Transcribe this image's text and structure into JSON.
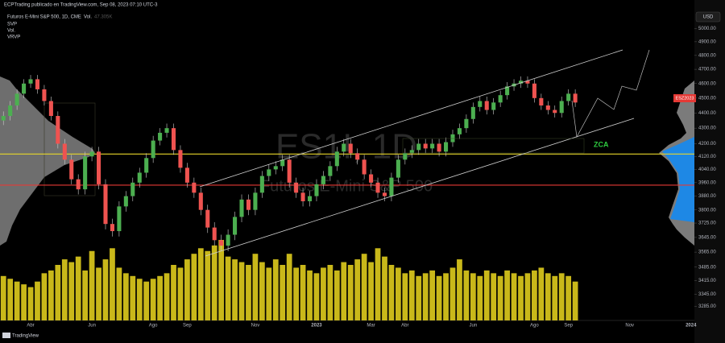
{
  "chart_data": {
    "type": "candlestick",
    "header": "ECPTrading publicado en TradingView.com, Sep 08, 2023 07:10 UTC-3",
    "symbol": "Futuros E-Mini S&P 500, 1D, CME",
    "volume_label": "Vol.",
    "volume_value": "47.305K",
    "indicators": [
      "SVP",
      "Vol.",
      "VRVP"
    ],
    "watermark": "ES1!, 1D",
    "watermark_name": "Futuros E-Mini S&P 500",
    "annotation": "ZCA",
    "price_tag": "ESZ2023",
    "currency": "USD",
    "brand": "TradingView",
    "log_scale": true,
    "ylim": [
      3215,
      5125
    ],
    "yticks": [
      {
        "value": 5000,
        "label": "5000.00"
      },
      {
        "value": 4900,
        "label": "4900.00"
      },
      {
        "value": 4800,
        "label": "4800.00"
      },
      {
        "value": 4700,
        "label": "4700.00"
      },
      {
        "value": 4600,
        "label": "4600.00"
      },
      {
        "value": 4500,
        "label": "4500.00"
      },
      {
        "value": 4400,
        "label": "4400.00"
      },
      {
        "value": 4300,
        "label": "4300.00"
      },
      {
        "value": 4200,
        "label": "4200.00"
      },
      {
        "value": 4120,
        "label": "4120.00"
      },
      {
        "value": 4040,
        "label": "4040.00"
      },
      {
        "value": 3960,
        "label": "3960.00"
      },
      {
        "value": 3880,
        "label": "3880.00"
      },
      {
        "value": 3800,
        "label": "3800.00"
      },
      {
        "value": 3725,
        "label": "3725.00"
      },
      {
        "value": 3645,
        "label": "3645.00"
      },
      {
        "value": 3565,
        "label": "3565.00"
      },
      {
        "value": 3485,
        "label": "3485.00"
      },
      {
        "value": 3415,
        "label": "3415.00"
      },
      {
        "value": 3345,
        "label": "3345.00"
      },
      {
        "value": 3285,
        "label": "3285.00"
      }
    ],
    "categories": [
      null,
      null,
      null,
      null,
      "Abr",
      null,
      null,
      null,
      null,
      null,
      null,
      null,
      null,
      "Jun",
      null,
      null,
      null,
      null,
      null,
      null,
      null,
      null,
      "Ago",
      null,
      null,
      null,
      null,
      "Sep",
      null,
      null,
      null,
      null,
      null,
      null,
      null,
      null,
      null,
      "Nov",
      null,
      null,
      null,
      null,
      null,
      null,
      null,
      null,
      "2023",
      null,
      null,
      null,
      null,
      null,
      null,
      null,
      "Mar",
      null,
      null,
      null,
      null,
      "Abr",
      null,
      null,
      null,
      null,
      null,
      null,
      null,
      null,
      null,
      "Jun",
      null,
      null,
      null,
      null,
      null,
      null,
      null,
      null,
      "Ago",
      null,
      null,
      null,
      null,
      "Sep",
      null,
      null,
      null,
      null,
      null,
      null,
      null,
      null,
      "Nov",
      null,
      null,
      null,
      null,
      null,
      null,
      null,
      null,
      "2024"
    ],
    "open": [
      4350,
      4380,
      4450,
      4530,
      4600,
      4630,
      4560,
      4480,
      4380,
      4200,
      4100,
      3980,
      3920,
      4120,
      4150,
      3950,
      3720,
      3680,
      3820,
      3880,
      3960,
      4020,
      4110,
      4220,
      4270,
      4300,
      4160,
      4050,
      3960,
      3900,
      3800,
      3700,
      3630,
      3600,
      3660,
      3760,
      3860,
      3800,
      3900,
      4000,
      4040,
      4060,
      4100,
      3960,
      3900,
      3850,
      3880,
      3950,
      4000,
      4060,
      4150,
      4200,
      4140,
      4100,
      4010,
      3960,
      3900,
      3880,
      3990,
      4100,
      4140,
      4160,
      4200,
      4170,
      4200,
      4150,
      4210,
      4260,
      4300,
      4360,
      4440,
      4480,
      4420,
      4470,
      4520,
      4580,
      4600,
      4620,
      4600,
      4500,
      4450,
      4420,
      4400,
      4480,
      4530,
      null,
      null,
      null,
      null,
      null,
      null,
      null,
      null,
      null,
      null,
      null,
      null,
      null,
      null,
      null,
      null,
      null
    ],
    "high": [
      4410,
      4480,
      4560,
      4630,
      4660,
      4660,
      4590,
      4510,
      4410,
      4230,
      4130,
      4010,
      4150,
      4180,
      4180,
      3980,
      3750,
      3850,
      3910,
      3990,
      4050,
      4140,
      4250,
      4300,
      4330,
      4330,
      4190,
      4080,
      3990,
      3930,
      3830,
      3730,
      3660,
      3690,
      3790,
      3890,
      3890,
      3930,
      4030,
      4070,
      4090,
      4130,
      4130,
      3990,
      3930,
      3910,
      3980,
      4030,
      4090,
      4180,
      4230,
      4230,
      4170,
      4130,
      4040,
      3990,
      3930,
      4020,
      4130,
      4170,
      4190,
      4230,
      4230,
      4230,
      4230,
      4240,
      4290,
      4330,
      4390,
      4470,
      4510,
      4510,
      4500,
      4550,
      4610,
      4630,
      4650,
      4650,
      4630,
      4530,
      4480,
      4450,
      4510,
      4560,
      4560,
      null,
      null,
      null,
      null,
      null,
      null,
      null,
      null,
      null,
      null,
      null,
      null,
      null,
      null,
      null,
      null,
      null
    ],
    "low": [
      4320,
      4350,
      4420,
      4500,
      4570,
      4530,
      4450,
      4350,
      4170,
      4070,
      3950,
      3890,
      3890,
      4090,
      3920,
      3690,
      3650,
      3650,
      3790,
      3850,
      3930,
      3990,
      4080,
      4190,
      4240,
      4130,
      4020,
      3930,
      3870,
      3770,
      3670,
      3600,
      3570,
      3570,
      3630,
      3730,
      3770,
      3770,
      3870,
      3970,
      4010,
      4030,
      3930,
      3870,
      3820,
      3820,
      3850,
      3920,
      3970,
      4030,
      4120,
      4110,
      4070,
      3980,
      3930,
      3870,
      3850,
      3850,
      3960,
      4070,
      4110,
      4130,
      4140,
      4140,
      4120,
      4120,
      4180,
      4230,
      4270,
      4330,
      4410,
      4390,
      4390,
      4440,
      4490,
      4550,
      4570,
      4570,
      4470,
      4420,
      4390,
      4370,
      4370,
      4450,
      4440,
      null,
      null,
      null,
      null,
      null,
      null,
      null,
      null,
      null,
      null,
      null,
      null,
      null,
      null,
      null,
      null,
      null
    ],
    "close": [
      4380,
      4450,
      4530,
      4600,
      4630,
      4560,
      4480,
      4380,
      4200,
      4100,
      3980,
      3920,
      4120,
      4150,
      3950,
      3720,
      3680,
      3820,
      3880,
      3960,
      4020,
      4110,
      4220,
      4270,
      4300,
      4160,
      4050,
      3960,
      3900,
      3800,
      3700,
      3630,
      3600,
      3660,
      3760,
      3860,
      3800,
      3900,
      4000,
      4040,
      4060,
      4100,
      3960,
      3900,
      3850,
      3880,
      3950,
      4000,
      4060,
      4150,
      4200,
      4140,
      4100,
      4010,
      3960,
      3900,
      3880,
      3990,
      4100,
      4140,
      4160,
      4200,
      4170,
      4200,
      4150,
      4210,
      4260,
      4300,
      4360,
      4440,
      4480,
      4420,
      4470,
      4520,
      4580,
      4600,
      4620,
      4600,
      4500,
      4450,
      4420,
      4400,
      4480,
      4530,
      4470,
      null,
      null,
      null,
      null,
      null,
      null,
      null,
      null,
      null,
      null,
      null,
      null,
      null,
      null,
      null,
      null,
      null
    ],
    "volume": [
      1.6,
      1.5,
      1.4,
      1.3,
      1.2,
      1.4,
      1.7,
      1.8,
      2.0,
      2.2,
      2.1,
      2.3,
      1.8,
      2.5,
      1.9,
      2.2,
      2.6,
      1.9,
      1.7,
      1.6,
      1.5,
      1.4,
      1.5,
      1.6,
      1.7,
      2.0,
      1.9,
      2.2,
      2.4,
      2.6,
      2.5,
      2.7,
      2.9,
      2.3,
      2.2,
      2.1,
      2.0,
      2.4,
      2.1,
      1.9,
      2.2,
      2.0,
      2.4,
      1.9,
      2.0,
      1.8,
      1.7,
      1.9,
      2.0,
      1.8,
      2.1,
      2.0,
      2.2,
      2.4,
      2.1,
      2.6,
      2.3,
      2.0,
      1.9,
      1.7,
      1.8,
      1.6,
      1.7,
      1.8,
      1.6,
      1.7,
      1.9,
      2.2,
      1.8,
      1.7,
      1.6,
      1.8,
      1.7,
      1.6,
      1.8,
      1.7,
      1.6,
      1.7,
      1.8,
      1.9,
      1.7,
      1.6,
      1.7,
      1.6,
      1.4,
      null,
      null,
      null,
      null,
      null,
      null,
      null,
      null,
      null,
      null,
      null,
      null,
      null,
      null,
      null,
      null,
      null
    ],
    "volume_ylim": [
      0,
      4
    ],
    "up_color": "#4caf50",
    "down_color": "#ef5350",
    "volume_color": "#c9b81a",
    "levels": [
      {
        "value": 4135,
        "color": "#e6d52a"
      },
      {
        "value": 3945,
        "color": "#e53935"
      }
    ]
  }
}
